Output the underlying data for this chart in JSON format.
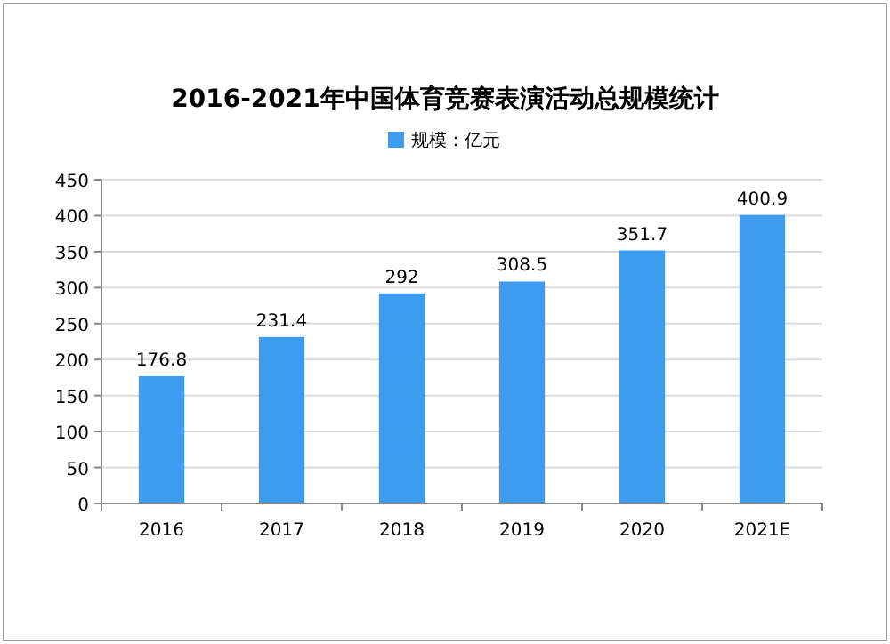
{
  "chart_data": {
    "type": "bar",
    "title": "2016-2021年中国体育竞赛表演活动总规模统计",
    "categories": [
      "2016",
      "2017",
      "2018",
      "2019",
      "2020",
      "2021E"
    ],
    "series": [
      {
        "name": "规模：亿元",
        "color": "#3d9cf0",
        "values": [
          176.8,
          231.4,
          292,
          308.5,
          351.7,
          400.9
        ]
      }
    ],
    "ylim": [
      0,
      450
    ],
    "yticks": [
      0,
      50,
      100,
      150,
      200,
      250,
      300,
      350,
      400,
      450
    ],
    "grid": "y",
    "legend": "top",
    "data_labels": true
  }
}
